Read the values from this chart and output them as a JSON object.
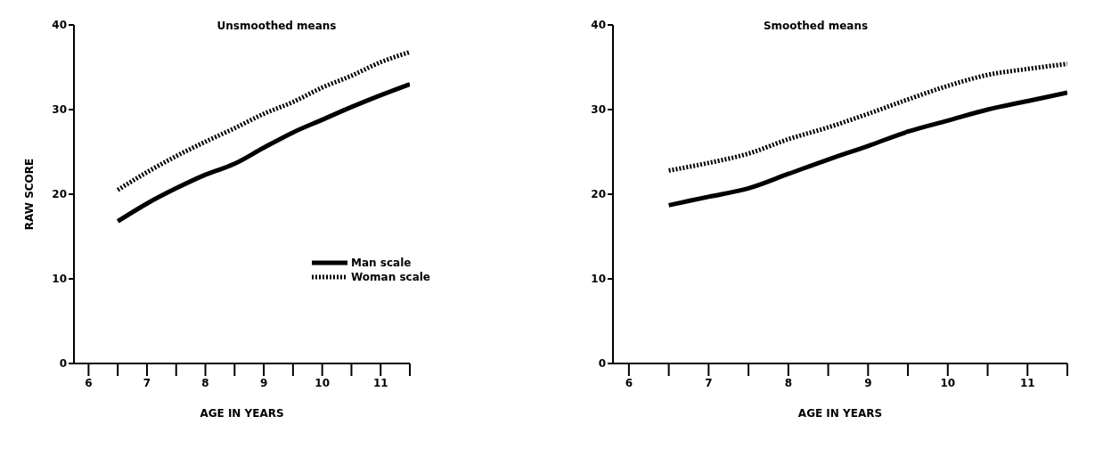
{
  "chart_data": [
    {
      "type": "line",
      "title": "Unsmoothed means",
      "xlabel": "AGE IN YEARS",
      "ylabel": "RAW SCORE",
      "x": [
        6.5,
        7,
        7.5,
        8,
        8.5,
        9,
        9.5,
        10,
        10.5,
        11,
        11.5
      ],
      "series": [
        {
          "name": "Man scale",
          "color": "#000000",
          "line_style": "solid",
          "values": [
            16.8,
            18.9,
            20.7,
            22.3,
            23.6,
            25.5,
            27.3,
            28.8,
            30.3,
            31.7,
            33
          ]
        },
        {
          "name": "Woman scale",
          "color": "#000000",
          "line_style": "dotted",
          "values": [
            20.5,
            22.6,
            24.5,
            26.2,
            27.8,
            29.5,
            30.9,
            32.6,
            34,
            35.6,
            36.8
          ]
        }
      ],
      "xlim": [
        5.75,
        11.5
      ],
      "xticks": [
        6,
        {
          "value": 6.5,
          "label": null
        },
        7,
        {
          "value": 7.5,
          "label": null
        },
        8,
        {
          "value": 8.5,
          "label": null
        },
        9,
        {
          "value": 9.5,
          "label": null
        },
        10,
        {
          "value": 10.5,
          "label": null
        },
        11,
        {
          "value": 11.5,
          "label": null
        }
      ],
      "ylim": [
        0,
        40
      ],
      "yticks": [
        0,
        10,
        20,
        30,
        40
      ],
      "grid": false,
      "legend": "right",
      "marker": "none"
    },
    {
      "type": "line",
      "title": "Smoothed means",
      "xlabel": "AGE IN YEARS",
      "x": [
        6.5,
        7,
        7.5,
        8,
        8.5,
        9,
        9.5,
        10,
        10.5,
        11,
        11.5
      ],
      "series": [
        {
          "color": "#000000",
          "line_style": "solid",
          "values": [
            18.7,
            19.7,
            20.7,
            22.4,
            24.1,
            25.7,
            27.4,
            28.7,
            30,
            31,
            32
          ]
        },
        {
          "color": "#000000",
          "line_style": "dotted",
          "values": [
            22.8,
            23.7,
            24.8,
            26.5,
            27.9,
            29.5,
            31.2,
            32.8,
            34.1,
            34.8,
            35.4
          ]
        }
      ],
      "xlim": [
        5.8,
        11.5
      ],
      "xticks": [
        6,
        {
          "value": 6.5,
          "label": null
        },
        7,
        {
          "value": 7.5,
          "label": null
        },
        8,
        {
          "value": 8.5,
          "label": null
        },
        9,
        {
          "value": 9.5,
          "label": null
        },
        10,
        {
          "value": 10.5,
          "label": null
        },
        11,
        {
          "value": 11.5,
          "label": null
        }
      ],
      "ylim": [
        0,
        40
      ],
      "yticks": [
        0,
        10,
        20,
        30,
        40
      ],
      "grid": false,
      "legend": false,
      "marker": "none"
    }
  ]
}
